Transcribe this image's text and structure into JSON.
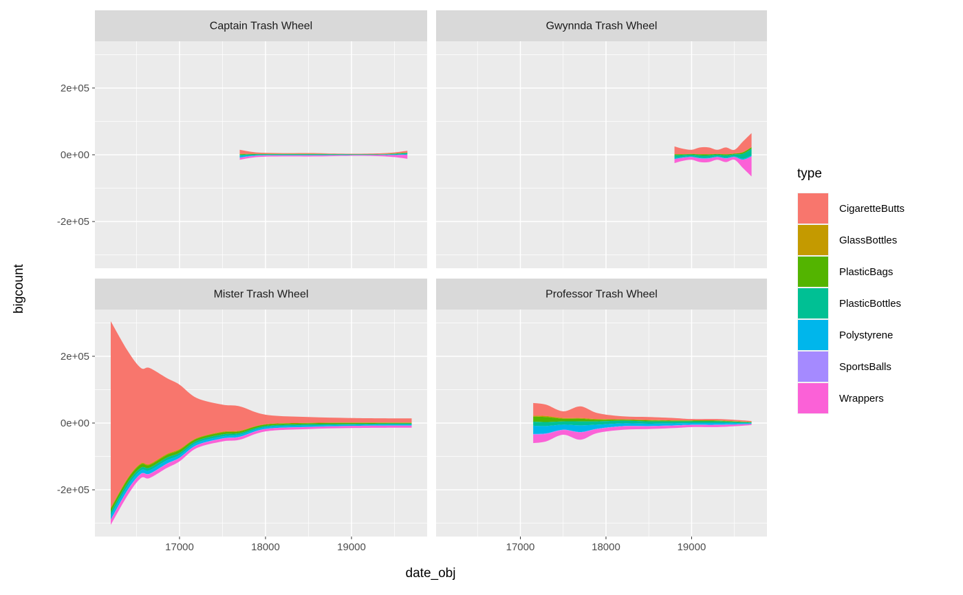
{
  "chart_data": {
    "type": "streamgraph",
    "x_label": "date_obj",
    "y_label": "bigcount",
    "legend_title": "type",
    "xlim": [
      16016,
      19880
    ],
    "ylim": [
      -340000,
      340000
    ],
    "xticks": [
      17000,
      18000,
      19000
    ],
    "yticks": [
      {
        "value": -200000,
        "label": "-2e+05"
      },
      {
        "value": 0,
        "label": "0e+00"
      },
      {
        "value": 200000,
        "label": "2e+05"
      }
    ],
    "grid": true,
    "series": [
      {
        "name": "CigaretteButts",
        "color": "#f8766d"
      },
      {
        "name": "GlassBottles",
        "color": "#c49a00"
      },
      {
        "name": "PlasticBags",
        "color": "#53b400"
      },
      {
        "name": "PlasticBottles",
        "color": "#00c094"
      },
      {
        "name": "Polystyrene",
        "color": "#00b6eb"
      },
      {
        "name": "SportsBalls",
        "color": "#a58aff"
      },
      {
        "name": "Wrappers",
        "color": "#fb61d7"
      }
    ],
    "panels": [
      {
        "title": "Captain Trash Wheel",
        "x": [
          17700,
          17900,
          18200,
          18600,
          19000,
          19300,
          19500,
          19650
        ],
        "values": [
          [
            12500,
            4200,
            2300,
            2300,
            1100,
            2100,
            2800,
            5300
          ],
          [
            1000,
            500,
            500,
            500,
            300,
            300,
            500,
            500
          ],
          [
            2000,
            1000,
            1000,
            1000,
            500,
            500,
            1000,
            1000
          ],
          [
            3000,
            2000,
            1500,
            1500,
            1000,
            1000,
            2000,
            3000
          ],
          [
            5000,
            2000,
            1500,
            1500,
            1000,
            1000,
            1500,
            2000
          ],
          [
            500,
            300,
            200,
            200,
            100,
            100,
            200,
            200
          ],
          [
            6000,
            4000,
            3000,
            3000,
            2000,
            3000,
            6000,
            12000
          ]
        ]
      },
      {
        "title": "Gwynnda Trash Wheel",
        "x": [
          18800,
          18900,
          19000,
          19100,
          19200,
          19300,
          19400,
          19500,
          19600,
          19700
        ],
        "values": [
          [
            23200,
            16200,
            12200,
            20200,
            20200,
            12200,
            20200,
            11200,
            32200,
            42200
          ],
          [
            500,
            500,
            500,
            500,
            500,
            500,
            500,
            500,
            500,
            500
          ],
          [
            3000,
            2000,
            2000,
            3000,
            3000,
            2000,
            3000,
            2000,
            4000,
            4000
          ],
          [
            8000,
            6000,
            5000,
            7000,
            7000,
            5000,
            7000,
            6000,
            15000,
            20000
          ],
          [
            3000,
            2000,
            2000,
            2000,
            2000,
            2000,
            2000,
            2000,
            3000,
            3000
          ],
          [
            300,
            300,
            300,
            300,
            300,
            300,
            300,
            300,
            300,
            300
          ],
          [
            12000,
            9000,
            8000,
            11000,
            11000,
            8000,
            11000,
            8000,
            25000,
            60000
          ]
        ]
      },
      {
        "title": "Mister Trash Wheel",
        "x": [
          16200,
          16400,
          16550,
          16650,
          16850,
          17000,
          17200,
          17500,
          17700,
          18000,
          18500,
          19000,
          19500,
          19700
        ],
        "values": [
          [
            559000,
            379000,
            286000,
            288000,
            228000,
            193000,
            120000,
            81000,
            73000,
            28500,
            17500,
            13500,
            12500,
            12500
          ],
          [
            3000,
            3000,
            3000,
            3000,
            3000,
            3000,
            2000,
            2000,
            2000,
            1000,
            1000,
            1000,
            1000,
            1000
          ],
          [
            10000,
            10000,
            10000,
            8000,
            8000,
            8000,
            6000,
            6000,
            5000,
            4000,
            3000,
            3000,
            2000,
            2000
          ],
          [
            10000,
            10000,
            8000,
            8000,
            8000,
            7000,
            6000,
            6000,
            5000,
            4000,
            4000,
            3000,
            3000,
            3000
          ],
          [
            12000,
            12000,
            10000,
            10000,
            10000,
            8000,
            7000,
            6000,
            6000,
            5000,
            4000,
            3000,
            3000,
            3000
          ],
          [
            1000,
            1000,
            1000,
            1000,
            1000,
            1000,
            1000,
            1000,
            1000,
            500,
            500,
            500,
            500,
            500
          ],
          [
            15000,
            15000,
            12000,
            12000,
            12000,
            10000,
            8000,
            8000,
            8000,
            7000,
            6000,
            6000,
            6000,
            6000
          ]
        ]
      },
      {
        "title": "Professor Trash Wheel",
        "x": [
          17150,
          17300,
          17500,
          17700,
          17900,
          18200,
          18500,
          18800,
          19000,
          19300,
          19600,
          19700
        ],
        "values": [
          [
            38000,
            34000,
            20000,
            35000,
            18000,
            9000,
            9000,
            7000,
            4000,
            4000,
            3500,
            2500
          ],
          [
            3000,
            3000,
            2000,
            2000,
            2000,
            1000,
            1000,
            1000,
            1000,
            1000,
            1000,
            1000
          ],
          [
            15000,
            15000,
            8000,
            8000,
            5000,
            3000,
            3000,
            2000,
            2000,
            2000,
            1000,
            1000
          ],
          [
            12000,
            12000,
            10000,
            12000,
            10000,
            8000,
            7000,
            6000,
            5000,
            5000,
            3000,
            2000
          ],
          [
            25000,
            22000,
            15000,
            20000,
            12000,
            8000,
            7000,
            6000,
            5000,
            5000,
            3000,
            2000
          ],
          [
            2000,
            2000,
            1000,
            1000,
            1000,
            1000,
            1000,
            1000,
            1000,
            1000,
            500,
            500
          ],
          [
            25000,
            22000,
            14000,
            22000,
            12000,
            10000,
            8000,
            7000,
            6000,
            6000,
            4000,
            3000
          ]
        ]
      }
    ]
  }
}
